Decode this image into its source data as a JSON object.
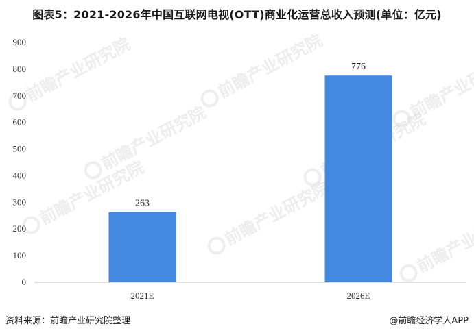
{
  "title": "图表5：2021-2026年中国互联网电视(OTT)商业化运营总收入预测(单位：亿元)",
  "chart_data": {
    "type": "bar",
    "categories": [
      "2021E",
      "2026E"
    ],
    "values": [
      263,
      776
    ],
    "data_labels": [
      "263",
      "776"
    ],
    "ylim": [
      0,
      900
    ],
    "yticks": [
      0,
      100,
      200,
      300,
      400,
      500,
      600,
      700,
      800,
      900
    ],
    "xlabel": "",
    "ylabel": "",
    "grid": false,
    "bar_color": "#4389e2"
  },
  "watermark": "前瞻产业研究院",
  "footer": {
    "source": "资料来源：前瞻产业研究院整理",
    "brand": "@前瞻经济学人APP"
  }
}
